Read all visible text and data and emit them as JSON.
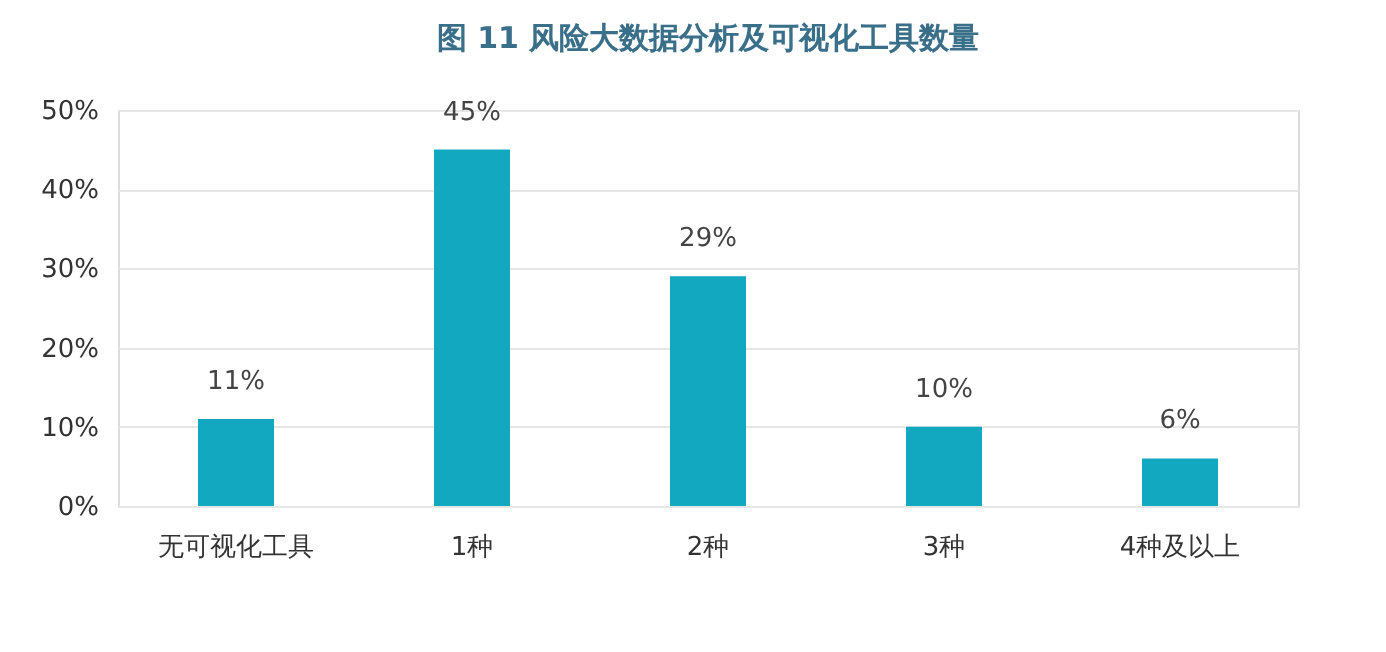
{
  "chart_data": {
    "type": "bar",
    "title": "图 11    风险大数据分析及可视化工具数量",
    "categories": [
      "无可视化工具",
      "1种",
      "2种",
      "3种",
      "4种及以上"
    ],
    "values": [
      11,
      45,
      29,
      10,
      6
    ],
    "color": "#12a8bf",
    "value_labels": [
      "11%",
      "45%",
      "29%",
      "10%",
      "6%"
    ],
    "ylim": [
      0,
      50
    ],
    "yticks": [
      {
        "value": 0,
        "label": "0%"
      },
      {
        "value": 10,
        "label": "10%"
      },
      {
        "value": 20,
        "label": "20%"
      },
      {
        "value": 30,
        "label": "30%"
      },
      {
        "value": 40,
        "label": "40%"
      },
      {
        "value": 50,
        "label": "50%"
      }
    ],
    "grid": "y"
  }
}
